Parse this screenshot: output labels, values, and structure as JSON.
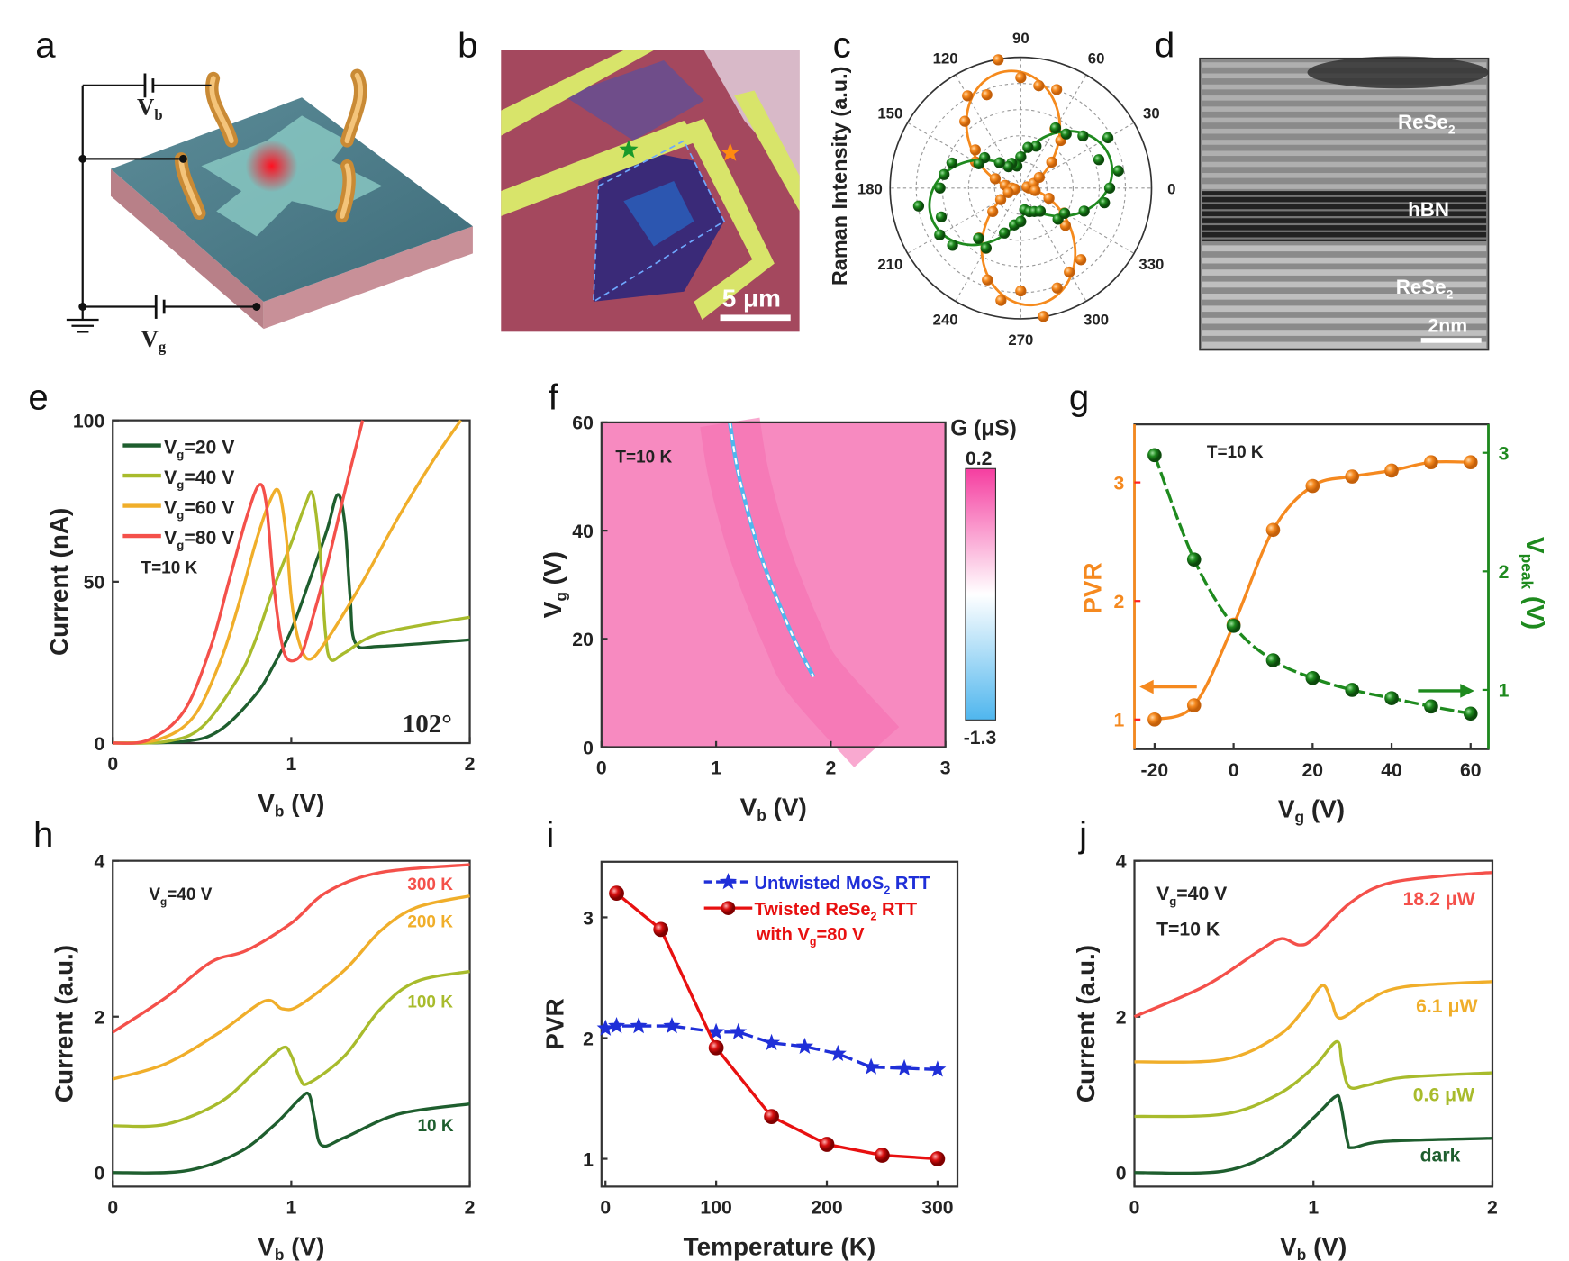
{
  "panel_labels": [
    "a",
    "b",
    "c",
    "d",
    "e",
    "f",
    "g",
    "h",
    "i",
    "j"
  ],
  "panel_a": {
    "vb": [
      "V",
      "b"
    ],
    "vg": [
      "V",
      "g"
    ]
  },
  "panel_b": {
    "scale_bar": "5 μm"
  },
  "panel_d": {
    "layers": [
      [
        "ReSe",
        "2"
      ],
      [
        "hBN"
      ],
      [
        "ReSe",
        "2"
      ]
    ],
    "scale_bar": "2nm"
  },
  "chart_data": {
    "c": {
      "type": "scatter-polar",
      "ylabel": "Raman Intensity (a.u.)",
      "angle_ticks": [
        "0",
        "30",
        "60",
        "90",
        "120",
        "150",
        "180",
        "210",
        "240",
        "270",
        "300",
        "330"
      ],
      "grid": true,
      "series": [
        {
          "color": "#f58a1d",
          "peak_angle_deg": 97,
          "min": 0.05,
          "max": 0.9
        },
        {
          "color": "#1f8a1f",
          "peak_angle_deg": 18,
          "min": 0.18,
          "max": 0.72
        }
      ]
    },
    "e": {
      "type": "line",
      "xlabel": [
        "V",
        "b",
        " (V)"
      ],
      "ylabel": "Current (nA)",
      "xlim": [
        0,
        2
      ],
      "ylim": [
        0,
        100
      ],
      "xticks": [
        "0",
        "1",
        "2"
      ],
      "yticks": [
        "0",
        "50",
        "100"
      ],
      "annotation_T": "T=10 K",
      "annotation_angle": "102°",
      "series": [
        {
          "name": [
            "V",
            "g",
            "=20 V"
          ],
          "color": "#1e5e2e",
          "points": [
            [
              0,
              0
            ],
            [
              0.4,
              0.5
            ],
            [
              0.6,
              4
            ],
            [
              0.8,
              15
            ],
            [
              0.9,
              24
            ],
            [
              1.0,
              35
            ],
            [
              1.1,
              50
            ],
            [
              1.2,
              66
            ],
            [
              1.26,
              77
            ],
            [
              1.3,
              68
            ],
            [
              1.33,
              45
            ],
            [
              1.36,
              31
            ],
            [
              1.5,
              30
            ],
            [
              2,
              32
            ]
          ]
        },
        {
          "name": [
            "V",
            "g",
            "=40 V"
          ],
          "color": "#a8bb2c",
          "points": [
            [
              0,
              0
            ],
            [
              0.3,
              0.5
            ],
            [
              0.5,
              5
            ],
            [
              0.7,
              20
            ],
            [
              0.8,
              32
            ],
            [
              0.9,
              48
            ],
            [
              1.0,
              62
            ],
            [
              1.08,
              74
            ],
            [
              1.12,
              77
            ],
            [
              1.16,
              60
            ],
            [
              1.19,
              35
            ],
            [
              1.22,
              26
            ],
            [
              1.3,
              28
            ],
            [
              1.5,
              34
            ],
            [
              2,
              39
            ]
          ]
        },
        {
          "name": [
            "V",
            "g",
            "=60 V"
          ],
          "color": "#f0ae2a",
          "points": [
            [
              0,
              0
            ],
            [
              0.25,
              1
            ],
            [
              0.45,
              8
            ],
            [
              0.6,
              25
            ],
            [
              0.7,
              42
            ],
            [
              0.8,
              62
            ],
            [
              0.88,
              75
            ],
            [
              0.93,
              78
            ],
            [
              0.97,
              65
            ],
            [
              1.0,
              45
            ],
            [
              1.04,
              32
            ],
            [
              1.1,
              26
            ],
            [
              1.2,
              32
            ],
            [
              1.4,
              50
            ],
            [
              1.6,
              70
            ],
            [
              1.8,
              88
            ],
            [
              1.95,
              100
            ]
          ]
        },
        {
          "name": [
            "V",
            "g",
            "=80 V"
          ],
          "color": "#f4504a",
          "points": [
            [
              0,
              0
            ],
            [
              0.2,
              1
            ],
            [
              0.4,
              10
            ],
            [
              0.55,
              30
            ],
            [
              0.65,
              50
            ],
            [
              0.75,
              70
            ],
            [
              0.82,
              80
            ],
            [
              0.86,
              74
            ],
            [
              0.9,
              50
            ],
            [
              0.94,
              33
            ],
            [
              0.98,
              26
            ],
            [
              1.05,
              27
            ],
            [
              1.1,
              35
            ],
            [
              1.2,
              55
            ],
            [
              1.3,
              78
            ],
            [
              1.4,
              100
            ]
          ]
        }
      ]
    },
    "f": {
      "type": "heatmap",
      "xlabel": [
        "V",
        "b",
        " (V)"
      ],
      "ylabel": [
        "V",
        "g",
        " (V)"
      ],
      "xlim": [
        0,
        3
      ],
      "ylim": [
        0,
        60
      ],
      "xticks": [
        "0",
        "1",
        "2",
        "3"
      ],
      "yticks": [
        "0",
        "20",
        "40",
        "60"
      ],
      "annotation_T": "T=10 K",
      "colorbar": {
        "label": "G (μS)",
        "max": "0.2",
        "min": "-1.3",
        "colors": [
          "#f53ea0",
          "#ffffff",
          "#4fb6ee"
        ]
      },
      "background_color": "#f78ac0",
      "ridge": [
        [
          1.12,
          60
        ],
        [
          1.18,
          52
        ],
        [
          1.27,
          44
        ],
        [
          1.38,
          36
        ],
        [
          1.52,
          28
        ],
        [
          1.68,
          20
        ],
        [
          1.85,
          13
        ]
      ]
    },
    "g": {
      "type": "line-dual-axis",
      "xlabel": [
        "V",
        "g",
        " (V)"
      ],
      "ylabel_left": "PVR",
      "ylabel_right": [
        "V",
        "peak",
        " (V)"
      ],
      "xlim": [
        -25.1,
        64.5
      ],
      "ylim_left": [
        0.75,
        3.49
      ],
      "ylim_right": [
        0.5,
        3.24
      ],
      "xticks": [
        "-20",
        "0",
        "20",
        "40",
        "60"
      ],
      "yticks_left": [
        "1",
        "2",
        "3"
      ],
      "yticks_right": [
        "1",
        "2",
        "3"
      ],
      "annotation_T": "T=10 K",
      "x": [
        -20,
        -10,
        0,
        10,
        20,
        30,
        40,
        50,
        60
      ],
      "series": [
        {
          "axis": "left",
          "color": "#f5891f",
          "values": [
            1.0,
            1.12,
            1.8,
            2.6,
            2.97,
            3.05,
            3.1,
            3.17,
            3.17
          ]
        },
        {
          "axis": "right",
          "color": "#1e8a1e",
          "values": [
            2.98,
            2.1,
            1.54,
            1.25,
            1.1,
            1.0,
            0.93,
            0.86,
            0.8
          ]
        }
      ]
    },
    "h": {
      "type": "line",
      "xlabel": [
        "V",
        "b",
        " (V)"
      ],
      "ylabel": "Current (a.u.)",
      "xlim": [
        0,
        2
      ],
      "ylim": [
        -0.18,
        4
      ],
      "xticks": [
        "0",
        "1",
        "2"
      ],
      "yticks": [
        "0",
        "2",
        "4"
      ],
      "annotation": [
        "V",
        "g",
        "=40 V"
      ],
      "series": [
        {
          "name": "10 K",
          "color": "#1e5e2e",
          "points": [
            [
              0,
              0
            ],
            [
              0.4,
              0.02
            ],
            [
              0.7,
              0.25
            ],
            [
              0.9,
              0.6
            ],
            [
              1.05,
              0.95
            ],
            [
              1.1,
              1.0
            ],
            [
              1.13,
              0.7
            ],
            [
              1.17,
              0.35
            ],
            [
              1.3,
              0.45
            ],
            [
              1.6,
              0.75
            ],
            [
              2,
              0.88
            ]
          ]
        },
        {
          "name": "100 K",
          "color": "#a8bb2c",
          "points": [
            [
              0,
              0.6
            ],
            [
              0.3,
              0.62
            ],
            [
              0.6,
              0.9
            ],
            [
              0.8,
              1.3
            ],
            [
              0.95,
              1.6
            ],
            [
              1.0,
              1.5
            ],
            [
              1.05,
              1.2
            ],
            [
              1.1,
              1.15
            ],
            [
              1.3,
              1.5
            ],
            [
              1.5,
              2.1
            ],
            [
              1.7,
              2.45
            ],
            [
              2,
              2.58
            ]
          ]
        },
        {
          "name": "200 K",
          "color": "#f0ae2a",
          "points": [
            [
              0,
              1.2
            ],
            [
              0.3,
              1.4
            ],
            [
              0.6,
              1.8
            ],
            [
              0.85,
              2.2
            ],
            [
              0.95,
              2.1
            ],
            [
              1.05,
              2.15
            ],
            [
              1.3,
              2.6
            ],
            [
              1.5,
              3.1
            ],
            [
              1.7,
              3.4
            ],
            [
              2,
              3.55
            ]
          ]
        },
        {
          "name": "300 K",
          "color": "#f4504a",
          "points": [
            [
              0,
              1.8
            ],
            [
              0.3,
              2.25
            ],
            [
              0.55,
              2.7
            ],
            [
              0.75,
              2.85
            ],
            [
              1.0,
              3.2
            ],
            [
              1.2,
              3.6
            ],
            [
              1.5,
              3.85
            ],
            [
              2,
              3.95
            ]
          ]
        }
      ]
    },
    "i": {
      "type": "line",
      "xlabel": "Temperature (K)",
      "ylabel": "PVR",
      "xlim": [
        -3.6,
        318
      ],
      "ylim": [
        0.77,
        3.46
      ],
      "xticks": [
        "0",
        "100",
        "200",
        "300"
      ],
      "yticks": [
        "1",
        "2",
        "3"
      ],
      "series": [
        {
          "name": [
            "Untwisted MoS",
            "2",
            " RTT"
          ],
          "color": "#1f2fd8",
          "marker": "star",
          "dashed": true,
          "points": [
            [
              0,
              2.08
            ],
            [
              10,
              2.1
            ],
            [
              30,
              2.1
            ],
            [
              60,
              2.1
            ],
            [
              100,
              2.05
            ],
            [
              120,
              2.05
            ],
            [
              150,
              1.96
            ],
            [
              180,
              1.93
            ],
            [
              210,
              1.87
            ],
            [
              240,
              1.76
            ],
            [
              270,
              1.75
            ],
            [
              300,
              1.74
            ]
          ]
        },
        {
          "name": [
            "Twisted ReSe",
            "2",
            " RTT"
          ],
          "name_line2": [
            "with V",
            "g",
            "=80 V"
          ],
          "color": "#e81010",
          "marker": "sphere",
          "dashed": false,
          "points": [
            [
              10,
              3.2
            ],
            [
              50,
              2.9
            ],
            [
              100,
              1.92
            ],
            [
              150,
              1.35
            ],
            [
              200,
              1.12
            ],
            [
              250,
              1.03
            ],
            [
              300,
              1.0
            ]
          ]
        }
      ]
    },
    "j": {
      "type": "line",
      "xlabel": [
        "V",
        "b",
        " (V)"
      ],
      "ylabel": "Current (a.u.)",
      "xlim": [
        0,
        2
      ],
      "ylim": [
        -0.18,
        4
      ],
      "xticks": [
        "0",
        "1",
        "2"
      ],
      "yticks": [
        "0",
        "2",
        "4"
      ],
      "annotation": [
        "V",
        "g",
        "=40 V"
      ],
      "annotation_T": "T=10 K",
      "series": [
        {
          "name": "dark",
          "color": "#1e5e2e",
          "points": [
            [
              0,
              0
            ],
            [
              0.5,
              0.02
            ],
            [
              0.8,
              0.3
            ],
            [
              1.0,
              0.7
            ],
            [
              1.12,
              0.97
            ],
            [
              1.15,
              0.9
            ],
            [
              1.19,
              0.4
            ],
            [
              1.22,
              0.32
            ],
            [
              1.4,
              0.4
            ],
            [
              2,
              0.44
            ]
          ]
        },
        {
          "name": "0.6 μW",
          "color": "#a8bb2c",
          "points": [
            [
              0,
              0.72
            ],
            [
              0.5,
              0.75
            ],
            [
              0.8,
              1.0
            ],
            [
              1.0,
              1.35
            ],
            [
              1.13,
              1.68
            ],
            [
              1.16,
              1.4
            ],
            [
              1.2,
              1.1
            ],
            [
              1.3,
              1.12
            ],
            [
              1.5,
              1.22
            ],
            [
              2,
              1.28
            ]
          ]
        },
        {
          "name": "6.1 μW",
          "color": "#f0ae2a",
          "points": [
            [
              0,
              1.42
            ],
            [
              0.5,
              1.45
            ],
            [
              0.8,
              1.75
            ],
            [
              0.95,
              2.1
            ],
            [
              1.05,
              2.4
            ],
            [
              1.1,
              2.2
            ],
            [
              1.15,
              1.98
            ],
            [
              1.3,
              2.2
            ],
            [
              1.5,
              2.38
            ],
            [
              2,
              2.45
            ]
          ]
        },
        {
          "name": "18.2 μW",
          "color": "#f4504a",
          "points": [
            [
              0,
              2.0
            ],
            [
              0.4,
              2.4
            ],
            [
              0.7,
              2.85
            ],
            [
              0.82,
              3.0
            ],
            [
              0.92,
              2.92
            ],
            [
              1.0,
              3.0
            ],
            [
              1.2,
              3.45
            ],
            [
              1.4,
              3.7
            ],
            [
              1.7,
              3.8
            ],
            [
              2,
              3.85
            ]
          ]
        }
      ]
    }
  }
}
